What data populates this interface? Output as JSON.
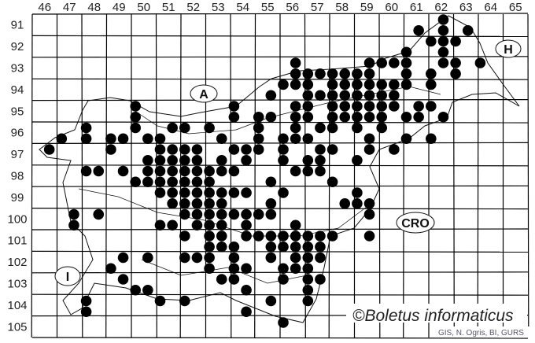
{
  "map": {
    "columns": [
      "46",
      "47",
      "48",
      "49",
      "50",
      "51",
      "52",
      "53",
      "54",
      "55",
      "56",
      "57",
      "58",
      "59",
      "60",
      "61",
      "62",
      "63",
      "64",
      "65"
    ],
    "rows": [
      "91",
      "92",
      "93",
      "94",
      "95",
      "96",
      "97",
      "98",
      "99",
      "100",
      "101",
      "102",
      "103",
      "104",
      "105"
    ],
    "countries": {
      "austria": "A",
      "hungary": "H",
      "croatia": "CRO",
      "italy": "I"
    },
    "copyright": "©Boletus informaticus",
    "credit": "GIS, N. Ogris, BI, GURS",
    "dot_color": "#000000",
    "records": [
      [
        62.5,
        91
      ],
      [
        61.5,
        91.5
      ],
      [
        62.5,
        91.5
      ],
      [
        63.5,
        91.5
      ],
      [
        62,
        92
      ],
      [
        62.5,
        92
      ],
      [
        63,
        92
      ],
      [
        61,
        92.5
      ],
      [
        62.5,
        92.5
      ],
      [
        56.5,
        93
      ],
      [
        59.5,
        93
      ],
      [
        60,
        93
      ],
      [
        60.5,
        93
      ],
      [
        61,
        93
      ],
      [
        62.5,
        93
      ],
      [
        63,
        93
      ],
      [
        64,
        93
      ],
      [
        56.5,
        93.5
      ],
      [
        57,
        93.5
      ],
      [
        57.5,
        93.5
      ],
      [
        58,
        93.5
      ],
      [
        58.5,
        93.5
      ],
      [
        59,
        93.5
      ],
      [
        59.5,
        93.5
      ],
      [
        61,
        93.5
      ],
      [
        62,
        93.5
      ],
      [
        63,
        93.5
      ],
      [
        56,
        94
      ],
      [
        56.5,
        94
      ],
      [
        57,
        94
      ],
      [
        58,
        94
      ],
      [
        58.5,
        94
      ],
      [
        59,
        94
      ],
      [
        59.5,
        94
      ],
      [
        60,
        94
      ],
      [
        60.5,
        94
      ],
      [
        61,
        94
      ],
      [
        62,
        94
      ],
      [
        55.5,
        94.5
      ],
      [
        57,
        94.5
      ],
      [
        57.5,
        94.5
      ],
      [
        58,
        94.5
      ],
      [
        58.5,
        94.5
      ],
      [
        59,
        94.5
      ],
      [
        59.5,
        94.5
      ],
      [
        60,
        94.5
      ],
      [
        60.5,
        94.5
      ],
      [
        50,
        95
      ],
      [
        54,
        95
      ],
      [
        56.5,
        95
      ],
      [
        57,
        95
      ],
      [
        58,
        95
      ],
      [
        58.5,
        95
      ],
      [
        59,
        95
      ],
      [
        59.5,
        95
      ],
      [
        60,
        95
      ],
      [
        60.5,
        95
      ],
      [
        61.5,
        95
      ],
      [
        62,
        95
      ],
      [
        50,
        95.5
      ],
      [
        54,
        95.5
      ],
      [
        55,
        95.5
      ],
      [
        55.5,
        95.5
      ],
      [
        56.5,
        95.5
      ],
      [
        57,
        95.5
      ],
      [
        58,
        95.5
      ],
      [
        58.5,
        95.5
      ],
      [
        59,
        95.5
      ],
      [
        59.5,
        95.5
      ],
      [
        60,
        95.5
      ],
      [
        61,
        95.5
      ],
      [
        61.5,
        95.5
      ],
      [
        62.5,
        95.5
      ],
      [
        48,
        96
      ],
      [
        50,
        96
      ],
      [
        51.5,
        96
      ],
      [
        52,
        96
      ],
      [
        53,
        96
      ],
      [
        55,
        96
      ],
      [
        56.5,
        96
      ],
      [
        57.5,
        96
      ],
      [
        58,
        96
      ],
      [
        59,
        96
      ],
      [
        60,
        96
      ],
      [
        47,
        96.5
      ],
      [
        48,
        96.5
      ],
      [
        49,
        96.5
      ],
      [
        49.5,
        96.5
      ],
      [
        50.5,
        96.5
      ],
      [
        51,
        96.5
      ],
      [
        53.5,
        96.5
      ],
      [
        55,
        96.5
      ],
      [
        56,
        96.5
      ],
      [
        56.5,
        96.5
      ],
      [
        57,
        96.5
      ],
      [
        59.5,
        96.5
      ],
      [
        61,
        96.5
      ],
      [
        62,
        96.5
      ],
      [
        46.5,
        97
      ],
      [
        49,
        97
      ],
      [
        51,
        97
      ],
      [
        51.5,
        97
      ],
      [
        52,
        97
      ],
      [
        52.5,
        97
      ],
      [
        54,
        97
      ],
      [
        54.5,
        97
      ],
      [
        55,
        97
      ],
      [
        56,
        97
      ],
      [
        57.5,
        97
      ],
      [
        58,
        97
      ],
      [
        59.5,
        97
      ],
      [
        60.5,
        97
      ],
      [
        50.5,
        97.5
      ],
      [
        51,
        97.5
      ],
      [
        51.5,
        97.5
      ],
      [
        52,
        97.5
      ],
      [
        52.5,
        97.5
      ],
      [
        53.5,
        97.5
      ],
      [
        54.5,
        97.5
      ],
      [
        56,
        97.5
      ],
      [
        57,
        97.5
      ],
      [
        57.5,
        97.5
      ],
      [
        59,
        97.5
      ],
      [
        48,
        98
      ],
      [
        48.5,
        98
      ],
      [
        49.5,
        98
      ],
      [
        50.5,
        98
      ],
      [
        51,
        98
      ],
      [
        51.5,
        98
      ],
      [
        52,
        98
      ],
      [
        52.5,
        98
      ],
      [
        53,
        98
      ],
      [
        53.5,
        98
      ],
      [
        54,
        98
      ],
      [
        56.5,
        98
      ],
      [
        57,
        98
      ],
      [
        57.5,
        98
      ],
      [
        50,
        98.5
      ],
      [
        50.5,
        98.5
      ],
      [
        51,
        98.5
      ],
      [
        51.5,
        98.5
      ],
      [
        52,
        98.5
      ],
      [
        52.5,
        98.5
      ],
      [
        53,
        98.5
      ],
      [
        55.5,
        98.5
      ],
      [
        58,
        98.5
      ],
      [
        51,
        99
      ],
      [
        51.5,
        99
      ],
      [
        52,
        99
      ],
      [
        52.5,
        99
      ],
      [
        53,
        99
      ],
      [
        53.5,
        99
      ],
      [
        54,
        99
      ],
      [
        54.5,
        99
      ],
      [
        56,
        99
      ],
      [
        59,
        99
      ],
      [
        51.5,
        99.5
      ],
      [
        52,
        99.5
      ],
      [
        52.5,
        99.5
      ],
      [
        53,
        99.5
      ],
      [
        53.5,
        99.5
      ],
      [
        55.5,
        99.5
      ],
      [
        58.5,
        99.5
      ],
      [
        59,
        99.5
      ],
      [
        59.5,
        99.5
      ],
      [
        47.5,
        100
      ],
      [
        48.5,
        100
      ],
      [
        52,
        100
      ],
      [
        52.5,
        100
      ],
      [
        53,
        100
      ],
      [
        53.5,
        100
      ],
      [
        54,
        100
      ],
      [
        54.5,
        100
      ],
      [
        55,
        100
      ],
      [
        55.5,
        100
      ],
      [
        59.5,
        100
      ],
      [
        47.5,
        100.5
      ],
      [
        51,
        100.5
      ],
      [
        51.5,
        100.5
      ],
      [
        52.5,
        100.5
      ],
      [
        53,
        100.5
      ],
      [
        53.5,
        100.5
      ],
      [
        54.5,
        100.5
      ],
      [
        56.5,
        100.5
      ],
      [
        52,
        101
      ],
      [
        53,
        101
      ],
      [
        53.5,
        101
      ],
      [
        54.5,
        101
      ],
      [
        55,
        101
      ],
      [
        55.5,
        101
      ],
      [
        56,
        101
      ],
      [
        56.5,
        101
      ],
      [
        57,
        101
      ],
      [
        57.5,
        101
      ],
      [
        58,
        101
      ],
      [
        59.5,
        101
      ],
      [
        53,
        101.5
      ],
      [
        53.5,
        101.5
      ],
      [
        54,
        101.5
      ],
      [
        55.5,
        101.5
      ],
      [
        56,
        101.5
      ],
      [
        56.5,
        101.5
      ],
      [
        57,
        101.5
      ],
      [
        57.5,
        101.5
      ],
      [
        49.5,
        102
      ],
      [
        50.5,
        102
      ],
      [
        52,
        102
      ],
      [
        52.5,
        102
      ],
      [
        53,
        102
      ],
      [
        54,
        102
      ],
      [
        55.5,
        102
      ],
      [
        56.5,
        102
      ],
      [
        57,
        102
      ],
      [
        57.5,
        102
      ],
      [
        49,
        102.5
      ],
      [
        53,
        102.5
      ],
      [
        54,
        102.5
      ],
      [
        54.5,
        102.5
      ],
      [
        56,
        102.5
      ],
      [
        56.5,
        102.5
      ],
      [
        57,
        102.5
      ],
      [
        49.5,
        103
      ],
      [
        53.5,
        103
      ],
      [
        54,
        103
      ],
      [
        56,
        103
      ],
      [
        57,
        103
      ],
      [
        57.5,
        103
      ],
      [
        50,
        103.5
      ],
      [
        50.5,
        103.5
      ],
      [
        54.5,
        103.5
      ],
      [
        57,
        103.5
      ],
      [
        48,
        104
      ],
      [
        51,
        104
      ],
      [
        52,
        104
      ],
      [
        55.5,
        104
      ],
      [
        57,
        104
      ],
      [
        48,
        104.5
      ],
      [
        54.5,
        104.5
      ],
      [
        56,
        105
      ]
    ]
  }
}
